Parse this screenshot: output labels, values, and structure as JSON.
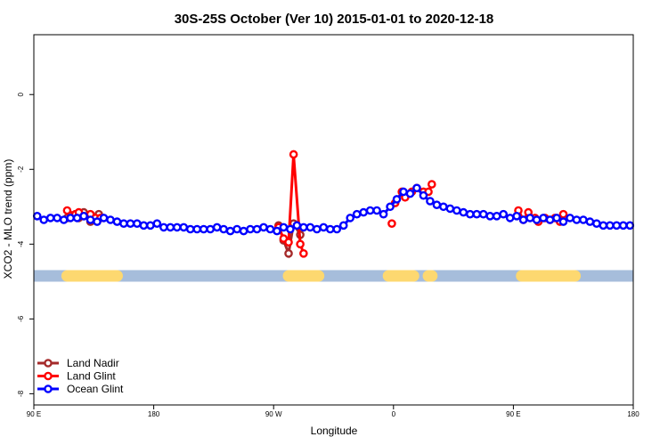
{
  "chart_data": {
    "type": "line",
    "title": "30S-25S October (Ver 10)   2015-01-01 to 2020-12-18",
    "xlabel": "Longitude",
    "ylabel": "XCO2 - MLO trend (ppm)",
    "xlim": [
      90,
      450
    ],
    "ylim": [
      -8.3,
      1.6
    ],
    "x_ticks": [
      {
        "value": 90,
        "label": "90 E"
      },
      {
        "value": 162,
        "label": "180"
      },
      {
        "value": 234,
        "label": "90 W"
      },
      {
        "value": 306,
        "label": "0"
      },
      {
        "value": 378,
        "label": "90 E"
      },
      {
        "value": 450,
        "label": "180"
      }
    ],
    "y_ticks": [
      {
        "value": 0,
        "label": "0"
      },
      {
        "value": -2,
        "label": "-2"
      },
      {
        "value": -4,
        "label": "-4"
      },
      {
        "value": -6,
        "label": "-6"
      },
      {
        "value": -8,
        "label": "-8"
      }
    ],
    "grid": false,
    "legend_position": "bottom-left",
    "surface_band": {
      "y": -4.85,
      "ocean_color": "#A6BDDB",
      "land_color": "#FDD870",
      "land_segments": [
        [
          110,
          140
        ],
        [
          243,
          261
        ],
        [
          303,
          318
        ],
        [
          327,
          329
        ],
        [
          383,
          415
        ]
      ]
    },
    "series": [
      {
        "name": "Land Nadir",
        "color": "#A52A2A",
        "x": [
          110,
          115,
          117,
          120,
          124,
          129,
          237,
          240,
          243,
          246,
          250
        ],
        "y": [
          -3.3,
          -3.2,
          -3.3,
          -3.15,
          -3.4,
          -3.2,
          -3.5,
          -3.9,
          -4.25,
          -3.45,
          -3.75
        ],
        "segments": [
          [
            0,
            5
          ],
          [
            6,
            10
          ]
        ]
      },
      {
        "name": "Land Glint",
        "color": "#FF0000",
        "x": [
          110,
          115,
          117,
          120,
          124,
          127,
          130,
          237,
          240,
          243,
          246,
          250,
          252,
          305,
          307,
          311,
          313,
          317,
          320,
          324,
          327,
          329,
          381,
          384,
          387,
          391,
          393,
          397,
          400,
          403,
          406,
          408
        ],
        "y": [
          -3.1,
          -3.2,
          -3.15,
          -3.25,
          -3.2,
          -3.3,
          -3.3,
          -3.55,
          -3.85,
          -3.95,
          -1.6,
          -4.0,
          -4.25,
          -3.45,
          -2.9,
          -2.6,
          -2.75,
          -2.6,
          -2.5,
          -2.6,
          -2.6,
          -2.4,
          -3.1,
          -3.35,
          -3.15,
          -3.3,
          -3.4,
          -3.3,
          -3.35,
          -3.3,
          -3.4,
          -3.2
        ],
        "segments": [
          [
            0,
            6
          ],
          [
            7,
            12
          ],
          [
            14,
            19
          ],
          [
            20,
            21
          ],
          [
            22,
            31
          ]
        ]
      },
      {
        "name": "Ocean Glint",
        "color": "#0000FF",
        "x": [
          92,
          96,
          100,
          104,
          108,
          112,
          116,
          120,
          124,
          128,
          132,
          136,
          140,
          144,
          148,
          152,
          156,
          160,
          164,
          168,
          172,
          176,
          180,
          184,
          188,
          192,
          196,
          200,
          204,
          208,
          212,
          216,
          220,
          224,
          228,
          232,
          236,
          240,
          244,
          248,
          252,
          256,
          260,
          264,
          268,
          272,
          276,
          280,
          284,
          288,
          292,
          296,
          300,
          304,
          308,
          312,
          316,
          320,
          324,
          328,
          332,
          336,
          340,
          344,
          348,
          352,
          356,
          360,
          364,
          368,
          372,
          376,
          380,
          384,
          388,
          392,
          396,
          400,
          404,
          408,
          412,
          416,
          420,
          424,
          428,
          432,
          436,
          440,
          444,
          448
        ],
        "y": [
          -3.25,
          -3.35,
          -3.3,
          -3.3,
          -3.35,
          -3.3,
          -3.3,
          -3.25,
          -3.35,
          -3.4,
          -3.3,
          -3.35,
          -3.4,
          -3.45,
          -3.45,
          -3.45,
          -3.5,
          -3.5,
          -3.45,
          -3.55,
          -3.55,
          -3.55,
          -3.55,
          -3.6,
          -3.6,
          -3.6,
          -3.6,
          -3.55,
          -3.6,
          -3.65,
          -3.6,
          -3.65,
          -3.6,
          -3.6,
          -3.55,
          -3.6,
          -3.65,
          -3.55,
          -3.6,
          -3.5,
          -3.55,
          -3.55,
          -3.6,
          -3.55,
          -3.6,
          -3.6,
          -3.5,
          -3.3,
          -3.2,
          -3.15,
          -3.1,
          -3.1,
          -3.2,
          -3.0,
          -2.8,
          -2.6,
          -2.65,
          -2.5,
          -2.7,
          -2.85,
          -2.95,
          -3.0,
          -3.05,
          -3.1,
          -3.15,
          -3.2,
          -3.2,
          -3.2,
          -3.25,
          -3.25,
          -3.2,
          -3.3,
          -3.25,
          -3.35,
          -3.3,
          -3.35,
          -3.3,
          -3.35,
          -3.3,
          -3.4,
          -3.3,
          -3.35,
          -3.35,
          -3.4,
          -3.45,
          -3.5,
          -3.5,
          -3.5,
          -3.5,
          -3.5
        ],
        "segments": [
          [
            0,
            89
          ]
        ]
      }
    ]
  }
}
